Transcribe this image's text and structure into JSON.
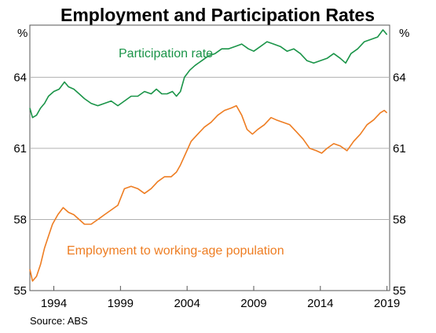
{
  "chart_data": {
    "type": "line",
    "title": "Employment and Participation Rates",
    "unit": "%",
    "xlim": [
      1992.7,
      2019.7
    ],
    "ylim": [
      55,
      66.2
    ],
    "yticks": [
      "55",
      "58",
      "61",
      "64"
    ],
    "xticks": [
      "1994",
      "1999",
      "2004",
      "2009",
      "2014",
      "2019"
    ],
    "grid": "horizontal",
    "source": "Source:   ABS",
    "colors": {
      "participation": "#1a9448",
      "employment": "#ee7d22",
      "grid": "#b0b0b0"
    },
    "series": [
      {
        "name": "Participation rate",
        "color": "#1a9448",
        "points": [
          [
            1992.7,
            62.7
          ],
          [
            1992.9,
            62.3
          ],
          [
            1993.2,
            62.4
          ],
          [
            1993.5,
            62.7
          ],
          [
            1993.8,
            62.9
          ],
          [
            1994.1,
            63.2
          ],
          [
            1994.5,
            63.4
          ],
          [
            1994.9,
            63.5
          ],
          [
            1995.3,
            63.8
          ],
          [
            1995.6,
            63.6
          ],
          [
            1996.0,
            63.5
          ],
          [
            1996.4,
            63.3
          ],
          [
            1996.8,
            63.1
          ],
          [
            1997.3,
            62.9
          ],
          [
            1997.8,
            62.8
          ],
          [
            1998.3,
            62.9
          ],
          [
            1998.8,
            63.0
          ],
          [
            1999.3,
            62.8
          ],
          [
            1999.8,
            63.0
          ],
          [
            2000.3,
            63.2
          ],
          [
            2000.8,
            63.2
          ],
          [
            2001.3,
            63.4
          ],
          [
            2001.8,
            63.3
          ],
          [
            2002.2,
            63.5
          ],
          [
            2002.6,
            63.3
          ],
          [
            2003.0,
            63.3
          ],
          [
            2003.4,
            63.4
          ],
          [
            2003.7,
            63.2
          ],
          [
            2004.0,
            63.4
          ],
          [
            2004.3,
            64.0
          ],
          [
            2004.7,
            64.3
          ],
          [
            2005.1,
            64.5
          ],
          [
            2005.6,
            64.7
          ],
          [
            2006.1,
            64.9
          ],
          [
            2006.6,
            65.0
          ],
          [
            2007.1,
            65.2
          ],
          [
            2007.6,
            65.2
          ],
          [
            2008.1,
            65.3
          ],
          [
            2008.6,
            65.4
          ],
          [
            2009.1,
            65.2
          ],
          [
            2009.5,
            65.1
          ],
          [
            2010.0,
            65.3
          ],
          [
            2010.5,
            65.5
          ],
          [
            2011.0,
            65.4
          ],
          [
            2011.5,
            65.3
          ],
          [
            2012.0,
            65.1
          ],
          [
            2012.5,
            65.2
          ],
          [
            2013.0,
            65.0
          ],
          [
            2013.5,
            64.7
          ],
          [
            2014.0,
            64.6
          ],
          [
            2014.5,
            64.7
          ],
          [
            2015.0,
            64.8
          ],
          [
            2015.5,
            65.0
          ],
          [
            2016.0,
            64.8
          ],
          [
            2016.4,
            64.6
          ],
          [
            2016.8,
            65.0
          ],
          [
            2017.3,
            65.2
          ],
          [
            2017.8,
            65.5
          ],
          [
            2018.3,
            65.6
          ],
          [
            2018.8,
            65.7
          ],
          [
            2019.2,
            66.0
          ],
          [
            2019.5,
            65.8
          ]
        ]
      },
      {
        "name": "Employment to working-age population",
        "color": "#ee7d22",
        "points": [
          [
            1992.7,
            55.9
          ],
          [
            1992.9,
            55.4
          ],
          [
            1993.2,
            55.6
          ],
          [
            1993.5,
            56.1
          ],
          [
            1993.8,
            56.8
          ],
          [
            1994.1,
            57.3
          ],
          [
            1994.4,
            57.8
          ],
          [
            1994.8,
            58.2
          ],
          [
            1995.2,
            58.5
          ],
          [
            1995.6,
            58.3
          ],
          [
            1996.0,
            58.2
          ],
          [
            1996.4,
            58.0
          ],
          [
            1996.8,
            57.8
          ],
          [
            1997.3,
            57.8
          ],
          [
            1997.8,
            58.0
          ],
          [
            1998.3,
            58.2
          ],
          [
            1998.8,
            58.4
          ],
          [
            1999.3,
            58.6
          ],
          [
            1999.8,
            59.3
          ],
          [
            2000.3,
            59.4
          ],
          [
            2000.8,
            59.3
          ],
          [
            2001.3,
            59.1
          ],
          [
            2001.8,
            59.3
          ],
          [
            2002.3,
            59.6
          ],
          [
            2002.8,
            59.8
          ],
          [
            2003.3,
            59.8
          ],
          [
            2003.7,
            60.0
          ],
          [
            2004.0,
            60.3
          ],
          [
            2004.4,
            60.8
          ],
          [
            2004.8,
            61.3
          ],
          [
            2005.3,
            61.6
          ],
          [
            2005.8,
            61.9
          ],
          [
            2006.3,
            62.1
          ],
          [
            2006.8,
            62.4
          ],
          [
            2007.3,
            62.6
          ],
          [
            2007.8,
            62.7
          ],
          [
            2008.2,
            62.8
          ],
          [
            2008.6,
            62.4
          ],
          [
            2009.0,
            61.8
          ],
          [
            2009.4,
            61.6
          ],
          [
            2009.8,
            61.8
          ],
          [
            2010.3,
            62.0
          ],
          [
            2010.8,
            62.3
          ],
          [
            2011.2,
            62.2
          ],
          [
            2011.7,
            62.1
          ],
          [
            2012.2,
            62.0
          ],
          [
            2012.7,
            61.7
          ],
          [
            2013.2,
            61.4
          ],
          [
            2013.7,
            61.0
          ],
          [
            2014.2,
            60.9
          ],
          [
            2014.6,
            60.8
          ],
          [
            2015.0,
            61.0
          ],
          [
            2015.5,
            61.2
          ],
          [
            2016.0,
            61.1
          ],
          [
            2016.5,
            60.9
          ],
          [
            2017.0,
            61.3
          ],
          [
            2017.5,
            61.6
          ],
          [
            2018.0,
            62.0
          ],
          [
            2018.5,
            62.2
          ],
          [
            2019.0,
            62.5
          ],
          [
            2019.3,
            62.6
          ],
          [
            2019.5,
            62.5
          ]
        ]
      }
    ]
  }
}
